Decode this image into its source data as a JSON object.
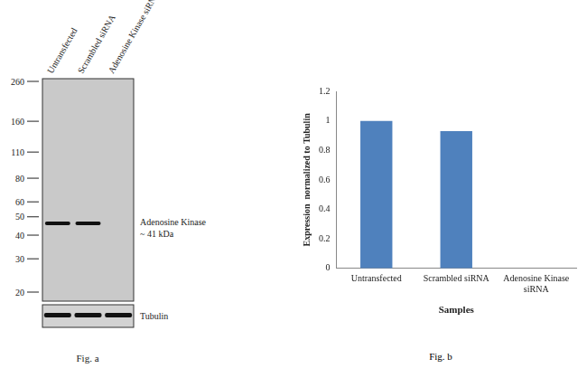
{
  "chart_data": {
    "type": "bar",
    "categories": [
      "Untransfected",
      "Scrambled siRNA",
      "Adenosine Kinase siRNA"
    ],
    "values": [
      1.0,
      0.93,
      0
    ],
    "color": "#4f81bd",
    "x_label": "Samples",
    "y_label": "Expression  normalized to Tubulin",
    "ylim": [
      0,
      1.2
    ],
    "yticks": [
      0,
      0.2,
      0.4,
      0.6,
      0.8,
      1,
      1.2
    ],
    "grid": false,
    "caption": "Fig. b"
  },
  "figure_a": {
    "caption": "Fig. a",
    "markers": [
      260,
      160,
      110,
      80,
      60,
      50,
      40,
      30,
      20
    ],
    "band_label": [
      "Adenosine Kinase",
      "~ 41 kDa"
    ],
    "loading_label": "Tubulin",
    "lanes": [
      {
        "label": "Untransfected",
        "target_band": true,
        "tubulin_band": true
      },
      {
        "label": "Scrambled siRNA",
        "target_band": true,
        "tubulin_band": true
      },
      {
        "label": "Adenosine Kinase siRNA",
        "target_band": false,
        "tubulin_band": true
      }
    ]
  }
}
